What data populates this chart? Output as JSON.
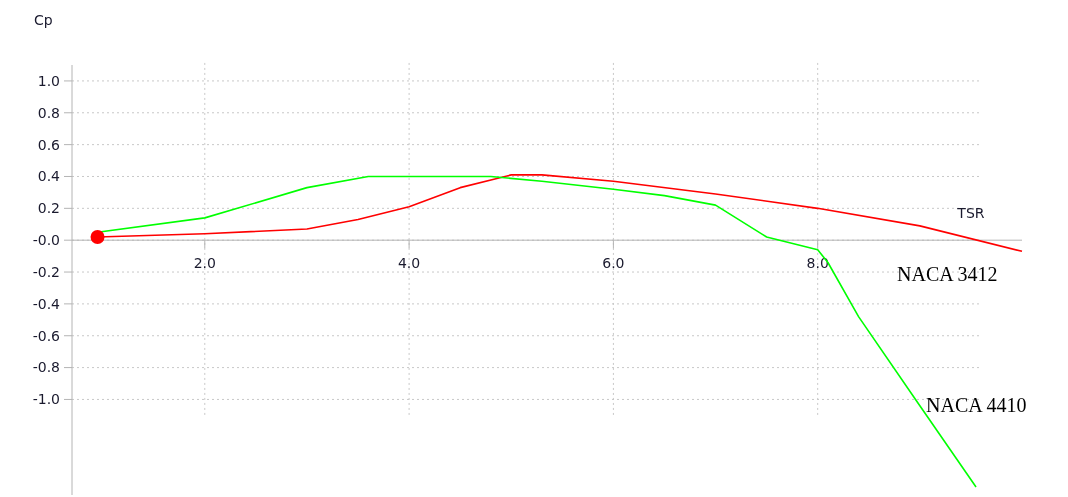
{
  "chart_data": {
    "type": "line",
    "xlabel": "TSR",
    "ylabel": "Cp",
    "xlim": [
      0.7,
      10.0
    ],
    "ylim": [
      -1.6,
      1.1
    ],
    "xticks": [
      {
        "value": 2,
        "label": "2.0"
      },
      {
        "value": 4,
        "label": "4.0"
      },
      {
        "value": 6,
        "label": "6.0"
      },
      {
        "value": 8,
        "label": "8.0"
      }
    ],
    "yticks": [
      {
        "value": -1,
        "label": "-1.0"
      },
      {
        "value": -0.8,
        "label": "-0.8"
      },
      {
        "value": -0.6,
        "label": "-0.6"
      },
      {
        "value": -0.4,
        "label": "-0.4"
      },
      {
        "value": -0.2,
        "label": "-0.2"
      },
      {
        "value": 0,
        "label": "-0.0"
      },
      {
        "value": 0.2,
        "label": "0.2"
      },
      {
        "value": 0.4,
        "label": "0.4"
      },
      {
        "value": 0.6,
        "label": "0.6"
      },
      {
        "value": 0.8,
        "label": "0.8"
      },
      {
        "value": 1,
        "label": "1.0"
      }
    ],
    "grid": true,
    "series": [
      {
        "name": "NACA 3412",
        "color": "#ff0000",
        "x": [
          0.95,
          2.0,
          3.0,
          3.5,
          4.0,
          4.5,
          5.0,
          5.3,
          6.0,
          7.0,
          8.0,
          9.0,
          10.0
        ],
        "values": [
          0.02,
          0.04,
          0.07,
          0.13,
          0.21,
          0.33,
          0.41,
          0.41,
          0.37,
          0.29,
          0.2,
          0.09,
          -0.07
        ]
      },
      {
        "name": "NACA 4410",
        "color": "#00ff00",
        "x": [
          0.95,
          2.0,
          3.0,
          3.6,
          4.8,
          5.3,
          6.0,
          6.5,
          7.0,
          7.5,
          8.0,
          8.1,
          8.4,
          9.0,
          9.55
        ],
        "values": [
          0.05,
          0.14,
          0.33,
          0.4,
          0.4,
          0.37,
          0.32,
          0.28,
          0.22,
          0.02,
          -0.06,
          -0.14,
          -0.48,
          -1.04,
          -1.55
        ]
      },
      {
        "type": "scatter",
        "color": "#ff0000",
        "marker": "circle",
        "x": [
          0.95
        ],
        "values": [
          0.02
        ]
      }
    ]
  }
}
